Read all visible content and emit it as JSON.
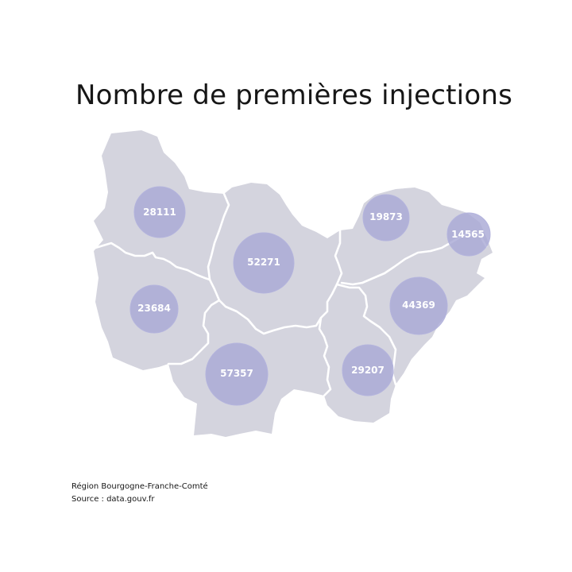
{
  "title": "Nombre de premières injections",
  "footer": {
    "region": "Région Bourgogne-Franche-Comté",
    "source": "Source : data.gouv.fr"
  },
  "colors": {
    "land": "#d4d4de",
    "border": "#ffffff",
    "bubble": "#a9a9d6",
    "label": "#ffffff"
  },
  "departments": [
    {
      "code": "89",
      "value": 28111,
      "value_label": "28111"
    },
    {
      "code": "21",
      "value": 52271,
      "value_label": "52271"
    },
    {
      "code": "70",
      "value": 19873,
      "value_label": "19873"
    },
    {
      "code": "90",
      "value": 14565,
      "value_label": "14565"
    },
    {
      "code": "58",
      "value": 23684,
      "value_label": "23684"
    },
    {
      "code": "25",
      "value": 44369,
      "value_label": "44369"
    },
    {
      "code": "71",
      "value": 57357,
      "value_label": "57357"
    },
    {
      "code": "39",
      "value": 29207,
      "value_label": "29207"
    }
  ]
}
